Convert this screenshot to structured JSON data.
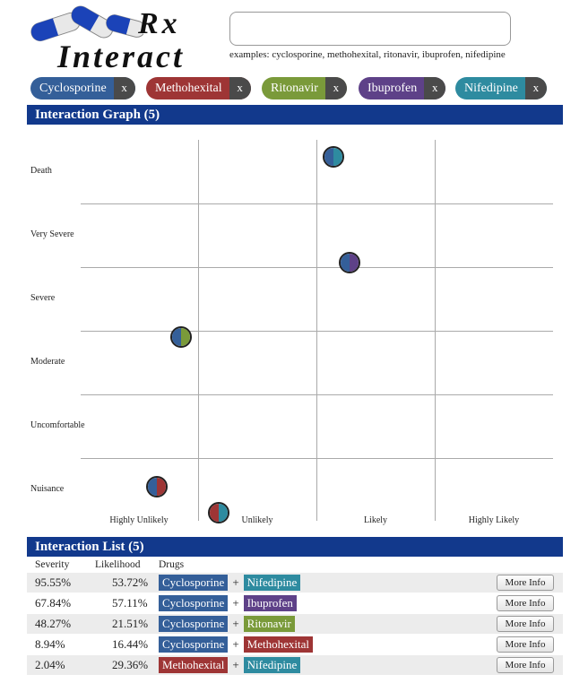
{
  "app": {
    "title_rx": "Rx",
    "title_text": "Interact"
  },
  "search": {
    "value": "",
    "examples": "examples: cyclosporine, methohexital, ritonavir, ibuprofen, nifedipine"
  },
  "colors": {
    "Cyclosporine": "#345f99",
    "Methohexital": "#9e3535",
    "Ritonavir": "#7a9a3a",
    "Ibuprofen": "#5e4188",
    "Nifedipine": "#2e8ba0",
    "header_bar": "#12398c"
  },
  "tags": [
    {
      "label": "Cyclosporine",
      "remove": "x"
    },
    {
      "label": "Methohexital",
      "remove": "x"
    },
    {
      "label": "Ritonavir",
      "remove": "x"
    },
    {
      "label": "Ibuprofen",
      "remove": "x"
    },
    {
      "label": "Nifedipine",
      "remove": "x"
    }
  ],
  "graph": {
    "title": "Interaction Graph (5)",
    "severity_labels": [
      "Death",
      "Very Severe",
      "Severe",
      "Moderate",
      "Uncomfortable",
      "Nuisance"
    ],
    "likelihood_labels": [
      "Highly Unlikely",
      "Unlikely",
      "Likely",
      "Highly Likely"
    ]
  },
  "list": {
    "title": "Interaction List (5)",
    "headers": {
      "severity": "Severity",
      "likelihood": "Likelihood",
      "drugs": "Drugs"
    },
    "more_label": "More Info",
    "plus": "+",
    "rows": [
      {
        "severity": "95.55%",
        "likelihood": "53.72%",
        "drug_a": "Cyclosporine",
        "drug_b": "Nifedipine"
      },
      {
        "severity": "67.84%",
        "likelihood": "57.11%",
        "drug_a": "Cyclosporine",
        "drug_b": "Ibuprofen"
      },
      {
        "severity": "48.27%",
        "likelihood": "21.51%",
        "drug_a": "Cyclosporine",
        "drug_b": "Ritonavir"
      },
      {
        "severity": "8.94%",
        "likelihood": "16.44%",
        "drug_a": "Cyclosporine",
        "drug_b": "Methohexital"
      },
      {
        "severity": "2.04%",
        "likelihood": "29.36%",
        "drug_a": "Methohexital",
        "drug_b": "Nifedipine"
      }
    ]
  }
}
